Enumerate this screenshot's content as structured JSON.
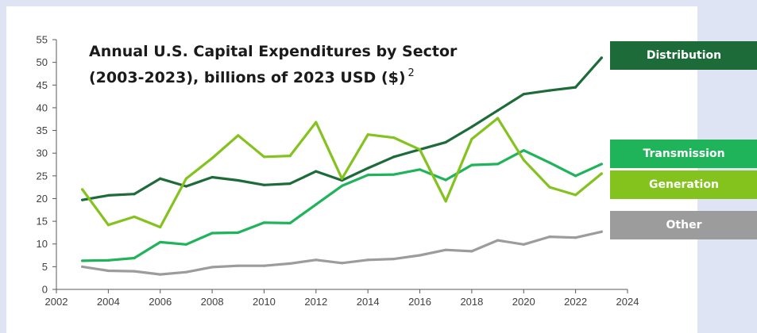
{
  "chart_data": {
    "type": "line",
    "title_line1": "Annual U.S. Capital Expenditures by Sector",
    "title_line2": "(2003-2023), billions of 2023 USD ($)",
    "title_sup": "2",
    "xlabel": "",
    "ylabel": "",
    "xlim": [
      2002,
      2024
    ],
    "ylim": [
      0,
      55
    ],
    "xticks": [
      2002,
      2004,
      2006,
      2008,
      2010,
      2012,
      2014,
      2016,
      2018,
      2020,
      2022,
      2024
    ],
    "yticks": [
      0,
      5,
      10,
      15,
      20,
      25,
      30,
      35,
      40,
      45,
      50,
      55
    ],
    "grid": false,
    "legend_position": "right",
    "x": [
      2003,
      2004,
      2005,
      2006,
      2007,
      2008,
      2009,
      2010,
      2011,
      2012,
      2013,
      2014,
      2015,
      2016,
      2017,
      2018,
      2019,
      2020,
      2021,
      2022,
      2023
    ],
    "series": [
      {
        "name": "Distribution",
        "color": "#1e6b3a",
        "values": [
          19.7,
          20.7,
          21.0,
          24.4,
          22.7,
          24.7,
          24.0,
          23.0,
          23.3,
          26.0,
          24.0,
          26.7,
          29.2,
          30.8,
          32.4,
          35.8,
          39.4,
          43.0,
          43.8,
          44.5,
          51.0
        ]
      },
      {
        "name": "Transmission",
        "color": "#1fb35a",
        "values": [
          6.3,
          6.4,
          6.9,
          10.4,
          9.9,
          12.4,
          12.5,
          14.7,
          14.6,
          18.7,
          22.8,
          25.2,
          25.3,
          26.4,
          24.1,
          27.4,
          27.6,
          30.6,
          27.9,
          25.0,
          27.6
        ]
      },
      {
        "name": "Generation",
        "color": "#84c21e",
        "values": [
          22.0,
          14.2,
          16.0,
          13.7,
          24.4,
          28.9,
          33.9,
          29.2,
          29.4,
          36.8,
          24.4,
          34.1,
          33.4,
          30.8,
          19.4,
          33.1,
          37.7,
          28.5,
          22.5,
          20.8,
          25.5
        ]
      },
      {
        "name": "Other",
        "color": "#9c9c9c",
        "values": [
          5.0,
          4.1,
          4.0,
          3.3,
          3.8,
          4.9,
          5.2,
          5.2,
          5.7,
          6.5,
          5.8,
          6.5,
          6.7,
          7.5,
          8.7,
          8.4,
          10.8,
          9.9,
          11.6,
          11.4,
          12.7
        ]
      }
    ]
  }
}
